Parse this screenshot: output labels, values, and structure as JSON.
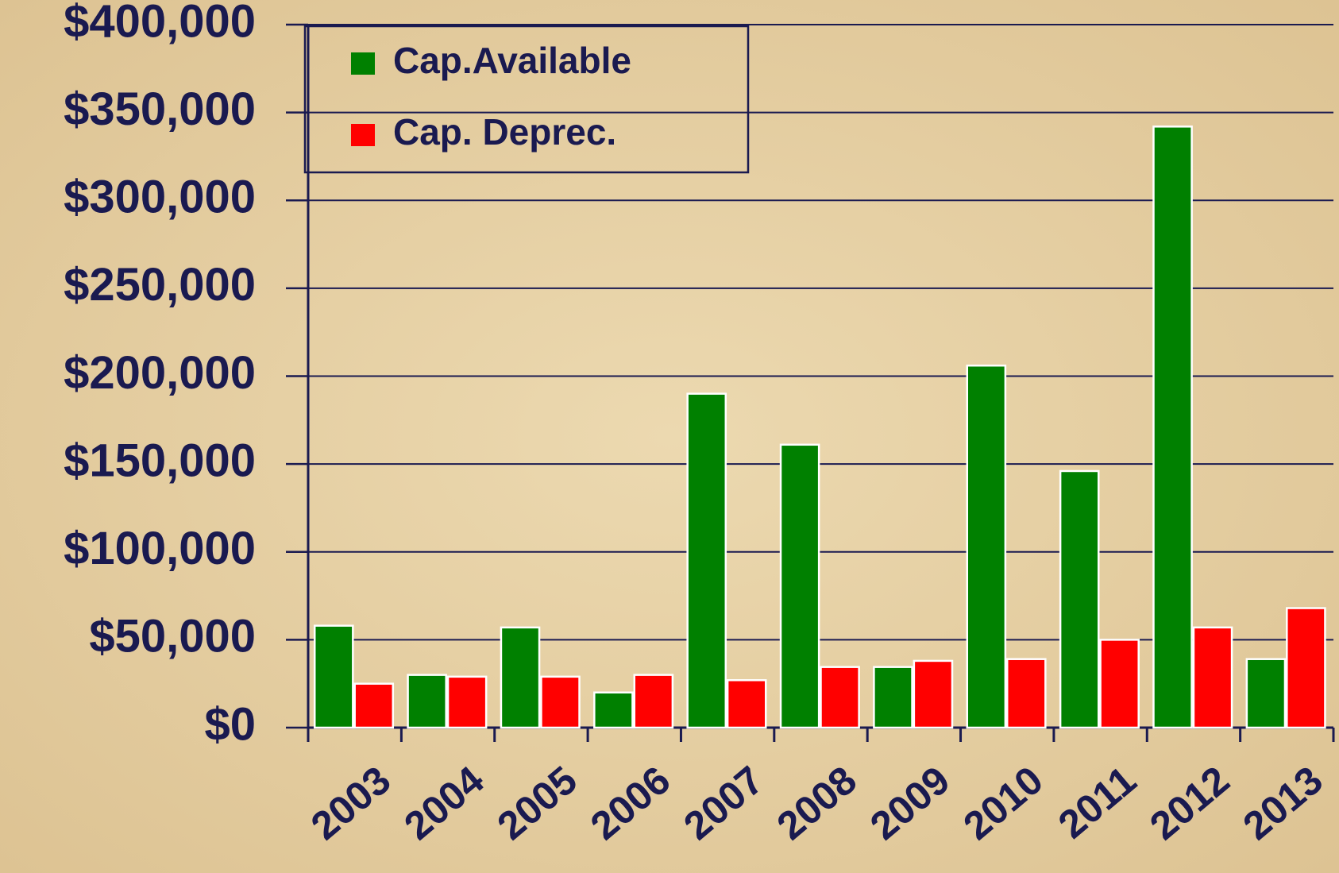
{
  "chart_data": {
    "type": "bar",
    "categories": [
      "2003",
      "2004",
      "2005",
      "2006",
      "2007",
      "2008",
      "2009",
      "2010",
      "2011",
      "2012",
      "2013"
    ],
    "series": [
      {
        "name": "Cap.Available",
        "color": "#008000",
        "values": [
          58000,
          30000,
          57000,
          20000,
          190000,
          161000,
          34500,
          206000,
          146000,
          342000,
          39000
        ]
      },
      {
        "name": "Cap. Deprec.",
        "color": "#ff0000",
        "values": [
          25000,
          29000,
          29000,
          30000,
          27000,
          34500,
          38000,
          39000,
          50000,
          57000,
          68000
        ]
      }
    ],
    "ylim": [
      0,
      400000
    ],
    "yticks": [
      {
        "value": 0,
        "label": "$0"
      },
      {
        "value": 50000,
        "label": "$50,000"
      },
      {
        "value": 100000,
        "label": "$100,000"
      },
      {
        "value": 150000,
        "label": "$150,000"
      },
      {
        "value": 200000,
        "label": "$200,000"
      },
      {
        "value": 250000,
        "label": "$250,000"
      },
      {
        "value": 300000,
        "label": "$300,000"
      },
      {
        "value": 350000,
        "label": "$350,000"
      },
      {
        "value": 400000,
        "label": "$400,000"
      }
    ],
    "grid": true,
    "legend": "top-left"
  }
}
